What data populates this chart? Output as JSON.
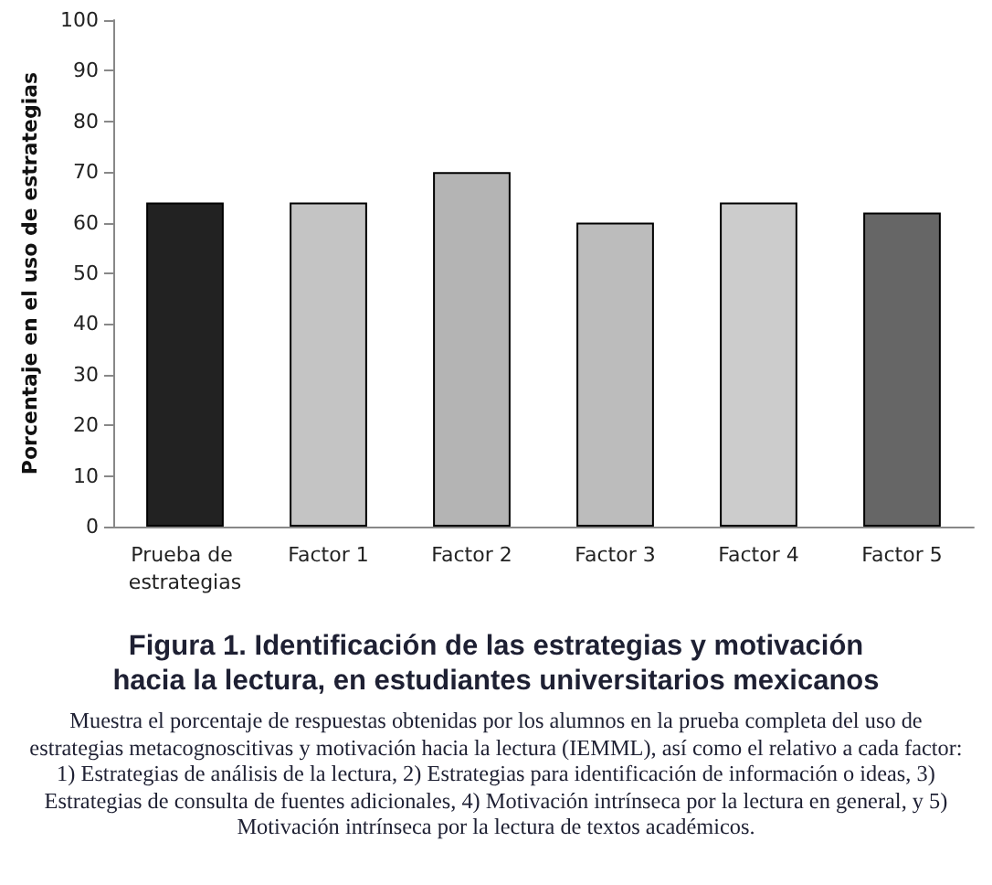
{
  "chart_data": {
    "type": "bar",
    "title": "Figura 1. Identificación de las estrategias y motivación hacia la lectura, en estudiantes universitarios mexicanos",
    "subtitle": "Muestra el porcentaje de respuestas obtenidas por los alumnos en la prueba completa del uso de estrategias metacognoscitivas y motivación hacia la lectura (IEMML), así como el relativo a cada factor: 1) Estrategias de análisis de la lectura, 2) Estrategias para identificación de información o ideas, 3) Estrategias de consulta de fuentes adicionales, 4) Motivación intrínseca por la lectura en general, y 5) Motivación intrínseca por la lectura de textos académicos.",
    "ylabel": "Porcentaje en el uso de estrategias",
    "categories": [
      "Prueba de estrategias",
      "Factor 1",
      "Factor 2",
      "Factor 3",
      "Factor 4",
      "Factor 5"
    ],
    "values": [
      64,
      64,
      70,
      60,
      64,
      62
    ],
    "colors": [
      "#222222",
      "#c4c4c4",
      "#b4b4b4",
      "#bcbcbc",
      "#cccccc",
      "#666666"
    ],
    "ylim": [
      0,
      100
    ],
    "yticks": [
      0,
      10,
      20,
      30,
      40,
      50,
      60,
      70,
      80,
      90,
      100
    ],
    "grid": false
  }
}
